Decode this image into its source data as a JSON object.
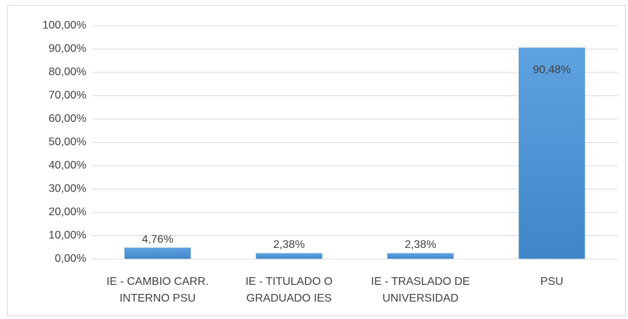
{
  "chart_data": {
    "type": "bar",
    "categories": [
      "IE - CAMBIO CARR. INTERNO PSU",
      "IE - TITULADO O GRADUADO IES",
      "IE - TRASLADO DE UNIVERSIDAD",
      "PSU"
    ],
    "values": [
      4.76,
      2.38,
      2.38,
      90.48
    ],
    "value_labels": [
      "4,76%",
      "2,38%",
      "2,38%",
      "90,48%"
    ],
    "color": "#5b9bd5",
    "ylim": [
      0,
      100
    ],
    "yticks": [
      {
        "value": 0,
        "label": "0,00%"
      },
      {
        "value": 10,
        "label": "10,00%"
      },
      {
        "value": 20,
        "label": "20,00%"
      },
      {
        "value": 30,
        "label": "30,00%"
      },
      {
        "value": 40,
        "label": "40,00%"
      },
      {
        "value": 50,
        "label": "50,00%"
      },
      {
        "value": 60,
        "label": "60,00%"
      },
      {
        "value": 70,
        "label": "70,00%"
      },
      {
        "value": 80,
        "label": "80,00%"
      },
      {
        "value": 90,
        "label": "90,00%"
      },
      {
        "value": 100,
        "label": "100,00%"
      }
    ],
    "grid": true
  }
}
